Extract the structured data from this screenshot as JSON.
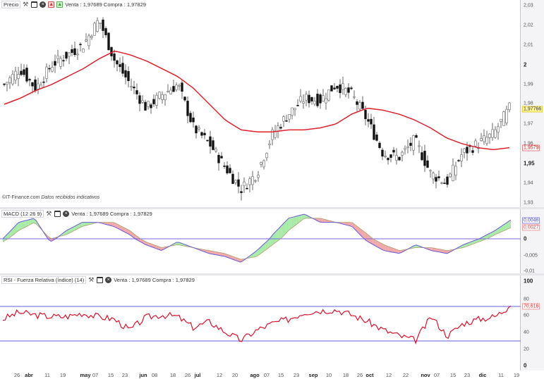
{
  "price_panel": {
    "title": "Precio",
    "quote": "Venta : 1,97689 Compra : 1,97829",
    "y_ticks": [
      "2,03",
      "2,02",
      "2,01",
      "2",
      "1,99",
      "1,98",
      "1,97",
      "1,96",
      "1,95",
      "1,94",
      "1,93"
    ],
    "last_price_tag": "1,97766",
    "ma_tag": "1,9579",
    "credit_source": "©IT-Finance.com",
    "credit_note": "Datos recibidos indicativos"
  },
  "macd_panel": {
    "title": "MACD (12 26 9)",
    "quote": "Venta : 1,97689 Compra : 1,97829",
    "y_ticks": [
      "0",
      "-0,005",
      "-0,01"
    ],
    "macd_tag": "0,0046",
    "signal_tag": "0,0027"
  },
  "rsi_panel": {
    "title": "RSI - Fuerza Relativa (índice) (14)",
    "quote": "Venta : 1,97689 Compra : 1,97829",
    "y_ticks": [
      "100",
      "80",
      "60",
      "40",
      "20",
      "0"
    ],
    "rsi_tag": "70,616"
  },
  "x_axis": {
    "labels": [
      "26",
      "abr",
      "11",
      "19",
      "may",
      "07",
      "15",
      "23",
      "jun",
      "08",
      "18",
      "26",
      "jul",
      "12",
      "20",
      "ago",
      "07",
      "15",
      "23",
      "sep",
      "10",
      "18",
      "26",
      "oct",
      "12",
      "22",
      "nov",
      "07",
      "15",
      "23",
      "dic",
      "11",
      "19"
    ]
  },
  "colors": {
    "ma": "#e0202a",
    "rsi": "#e0102a",
    "guide": "#8080e0",
    "macd_up_fill": "#a8eaa8",
    "macd_down_fill": "#f0a8a8",
    "candle_dark": "#111111",
    "candle_light": "#ffffff"
  },
  "chart_data": [
    {
      "type": "candlestick",
      "title": "Precio",
      "ylim": [
        1.93,
        2.03
      ],
      "x": [
        "mar-26",
        "abr",
        "abr-11",
        "abr-19",
        "may",
        "may-07",
        "may-15",
        "may-23",
        "jun",
        "jun-08",
        "jun-18",
        "jun-26",
        "jul",
        "jul-12",
        "jul-20",
        "ago",
        "ago-07",
        "ago-15",
        "ago-23",
        "sep",
        "sep-10",
        "sep-18",
        "sep-26",
        "oct",
        "oct-12",
        "oct-22",
        "nov",
        "nov-07",
        "nov-15",
        "nov-23",
        "dic",
        "dic-11",
        "dic-19"
      ],
      "series": [
        {
          "name": "Close (approx)",
          "values": [
            1.99,
            1.998,
            1.988,
            2.0,
            2.005,
            2.01,
            2.023,
            2.002,
            1.99,
            1.978,
            1.985,
            1.99,
            1.968,
            1.96,
            1.948,
            1.937,
            1.945,
            1.965,
            1.975,
            1.983,
            1.982,
            1.99,
            1.985,
            1.972,
            1.955,
            1.953,
            1.962,
            1.945,
            1.94,
            1.955,
            1.96,
            1.965,
            1.978
          ]
        },
        {
          "name": "Media móvil",
          "values": [
            1.98,
            1.983,
            1.987,
            1.99,
            1.994,
            1.998,
            2.003,
            2.007,
            2.005,
            2.002,
            1.998,
            1.994,
            1.988,
            1.98,
            1.972,
            1.967,
            1.966,
            1.966,
            1.967,
            1.967,
            1.968,
            1.97,
            1.975,
            1.978,
            1.977,
            1.975,
            1.972,
            1.968,
            1.963,
            1.96,
            1.958,
            1.957,
            1.958
          ]
        }
      ],
      "last_value": 1.97766,
      "ma_last": 1.9579
    },
    {
      "type": "area",
      "title": "MACD (12 26 9)",
      "ylim": [
        -0.011,
        0.0065
      ],
      "series": [
        {
          "name": "MACD",
          "values": [
            0.0,
            0.004,
            0.005,
            -0.001,
            0.002,
            0.004,
            0.004,
            0.003,
            0.001,
            -0.002,
            -0.004,
            -0.001,
            -0.003,
            -0.005,
            -0.006,
            -0.008,
            -0.004,
            0.001,
            0.005,
            0.006,
            0.004,
            0.004,
            0.003,
            -0.001,
            -0.004,
            -0.005,
            -0.002,
            -0.004,
            -0.005,
            -0.002,
            0.0,
            0.002,
            0.0046
          ]
        },
        {
          "name": "Señal",
          "values": [
            -0.001,
            0.002,
            0.004,
            0.0,
            0.001,
            0.003,
            0.004,
            0.004,
            0.002,
            -0.001,
            -0.003,
            -0.002,
            -0.003,
            -0.004,
            -0.005,
            -0.007,
            -0.006,
            -0.002,
            0.002,
            0.005,
            0.005,
            0.004,
            0.004,
            0.001,
            -0.002,
            -0.004,
            -0.003,
            -0.003,
            -0.004,
            -0.003,
            -0.001,
            0.001,
            0.0027
          ]
        }
      ],
      "zero_line": 0
    },
    {
      "type": "line",
      "title": "RSI - Fuerza Relativa (índice) (14)",
      "ylim": [
        0,
        100
      ],
      "series": [
        {
          "name": "RSI",
          "values": [
            55,
            63,
            60,
            58,
            58,
            62,
            58,
            55,
            42,
            57,
            60,
            58,
            45,
            52,
            40,
            30,
            42,
            50,
            55,
            63,
            65,
            66,
            60,
            52,
            42,
            35,
            30,
            58,
            35,
            50,
            55,
            58,
            70.616
          ]
        }
      ],
      "guides": [
        70,
        30
      ],
      "last_value": 70.616
    }
  ]
}
